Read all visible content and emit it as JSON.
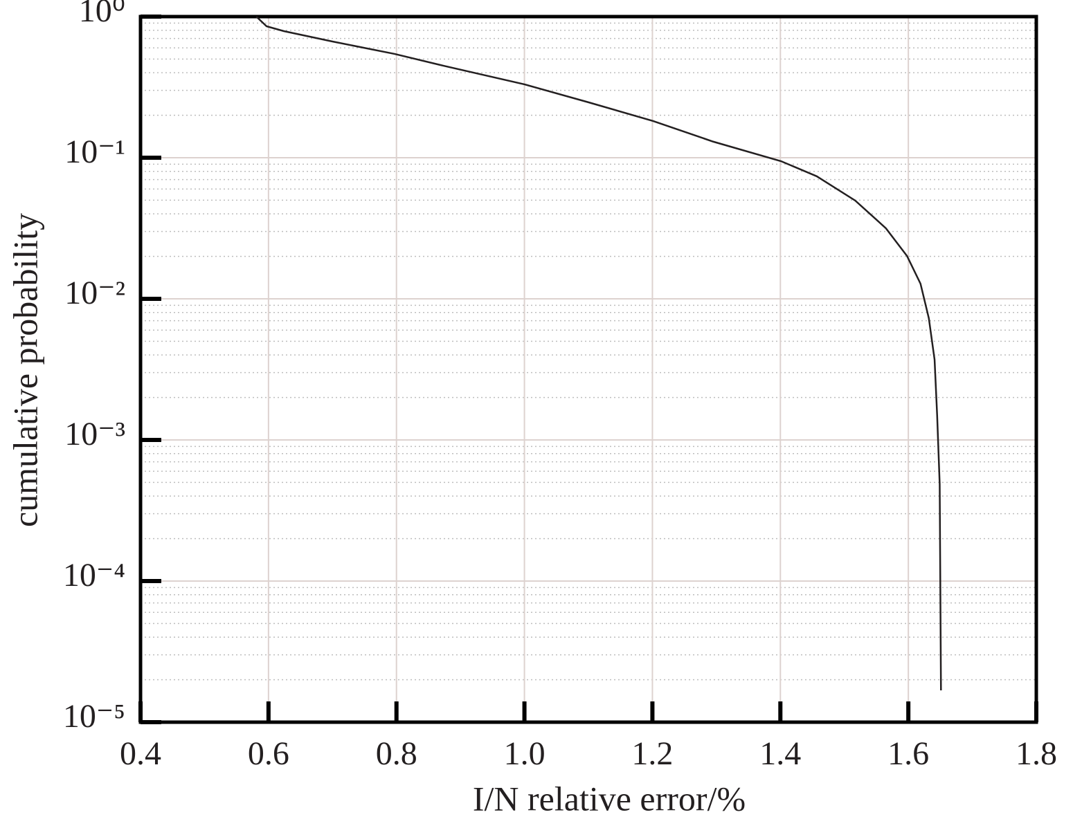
{
  "chart_data": {
    "type": "line",
    "xlabel": "I/N relative error/%",
    "ylabel": "cumulative probability",
    "x": [
      0.581,
      0.597,
      0.624,
      0.7,
      0.797,
      0.873,
      1.0,
      1.1,
      1.201,
      1.295,
      1.401,
      1.457,
      1.517,
      1.565,
      1.598,
      1.619,
      1.632,
      1.641,
      1.645,
      1.649,
      1.65,
      1.651
    ],
    "series": [
      {
        "color": "#231f20",
        "values": [
          1,
          0.854,
          0.789,
          0.666,
          0.544,
          0.449,
          0.331,
          0.247,
          0.182,
          0.13,
          0.0945,
          0.0738,
          0.0497,
          0.0316,
          0.0201,
          0.0128,
          0.00729,
          0.00371,
          0.0015,
          0.000485,
          8.9e-05,
          1.68e-05
        ]
      }
    ],
    "xlim": [
      0.4,
      1.8
    ],
    "xticks": [
      0.4,
      0.6,
      0.8,
      {
        "value": 1,
        "label": "1.0"
      },
      1.2,
      1.4,
      1.6,
      1.8
    ],
    "ylim": [
      1e-05,
      1
    ],
    "yscale": "log",
    "yticks": [
      {
        "value": 1,
        "label": "10⁰"
      },
      {
        "value": 0.1,
        "label": "10⁻¹"
      },
      {
        "value": 0.01,
        "label": "10⁻²"
      },
      {
        "value": 0.001,
        "label": "10⁻³"
      },
      {
        "value": 0.0001,
        "label": "10⁻⁴"
      },
      {
        "value": 1e-05,
        "label": "10⁻⁵"
      }
    ],
    "yminorticks": [
      2e-05,
      3e-05,
      4e-05,
      5e-05,
      6e-05,
      7e-05,
      8e-05,
      9e-05,
      0.0002,
      0.0003,
      0.0004,
      0.0005,
      0.0006,
      0.0007,
      0.0008,
      0.0009,
      0.002,
      0.003,
      0.004,
      0.005,
      0.006,
      0.007,
      0.008,
      0.009,
      0.02,
      0.03,
      0.04,
      0.05,
      0.06,
      0.07,
      0.08,
      0.09,
      0.2,
      0.3,
      0.4,
      0.5,
      0.6,
      0.7,
      0.8,
      0.9
    ],
    "grid": true
  }
}
